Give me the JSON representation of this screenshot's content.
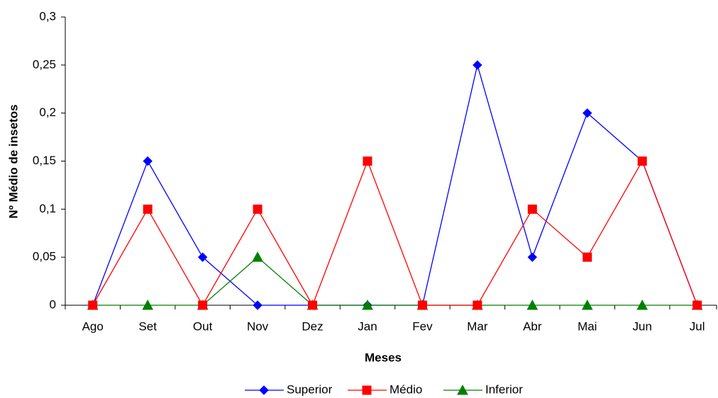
{
  "chart_data": {
    "type": "line",
    "x_label": "Meses",
    "y_label": "Nº Médio de insetos",
    "categories": [
      "Ago",
      "Set",
      "Out",
      "Nov",
      "Dez",
      "Jan",
      "Fev",
      "Mar",
      "Abr",
      "Mai",
      "Jun",
      "Jul"
    ],
    "series": [
      {
        "name": "Superior",
        "color": "#0000ff",
        "marker": "diamond",
        "values": [
          0,
          0.15,
          0.05,
          0,
          0,
          0,
          0,
          0.25,
          0.05,
          0.2,
          0.15,
          0
        ]
      },
      {
        "name": "Inferior",
        "color": "#008000",
        "marker": "triangle",
        "values": [
          0,
          0,
          0,
          0.05,
          0,
          0,
          0,
          0,
          0,
          0,
          0,
          0
        ]
      },
      {
        "name": "Médio",
        "color": "#ff0000",
        "marker": "square",
        "values": [
          0,
          0.1,
          0,
          0.1,
          0,
          0.15,
          0,
          0,
          0.1,
          0.05,
          0.15,
          0
        ]
      }
    ],
    "legend_order": [
      0,
      2,
      1
    ],
    "ylim": [
      0,
      0.3
    ],
    "yticks": [
      0,
      {
        "value": 0.05,
        "label": "0,05"
      },
      {
        "value": 0.1,
        "label": "0,1"
      },
      {
        "value": 0.15,
        "label": "0,15"
      },
      {
        "value": 0.2,
        "label": "0,2"
      },
      {
        "value": 0.25,
        "label": "0,25"
      },
      {
        "value": 0.3,
        "label": "0,3"
      }
    ],
    "grid": false,
    "legend": "bottom"
  }
}
